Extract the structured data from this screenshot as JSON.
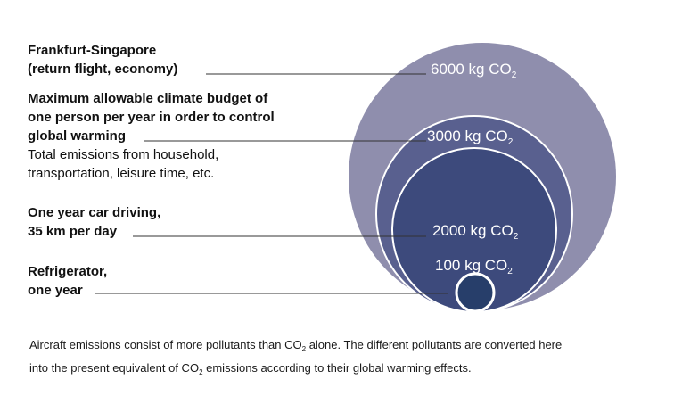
{
  "items": [
    {
      "title_lines": [
        "Frankfurt-Singapore",
        "(return flight, economy)"
      ],
      "desc_lines": [],
      "value": "6000 kg CO",
      "value_sub": "2",
      "color": "#8f8ead"
    },
    {
      "title_lines": [
        "Maximum allowable climate budget of",
        "one person per year in order to control",
        "global warming"
      ],
      "desc_lines": [
        "Total emissions from household,",
        "transportation, leisure time, etc."
      ],
      "value": "3000 kg CO",
      "value_sub": "2",
      "color": "#59608f"
    },
    {
      "title_lines": [
        "One year car driving,",
        "35 km per day"
      ],
      "desc_lines": [],
      "value": "2000 kg CO",
      "value_sub": "2",
      "color": "#3d4a7c"
    },
    {
      "title_lines": [
        "Refrigerator,",
        "one year"
      ],
      "desc_lines": [],
      "value": "100 kg CO",
      "value_sub": "2",
      "color": "#273e6a"
    }
  ],
  "footnote": {
    "line1_a": "Aircraft emissions consist of more pollutants than CO",
    "line1_sub": "2",
    "line1_b": " alone. The different pollutants are converted here",
    "line2_a": "into the present equivalent of CO",
    "line2_sub": "2",
    "line2_b": " emissions according to their global warming effects."
  },
  "colors": {
    "circle_outline": "#ffffff",
    "leader_line": "#333333"
  }
}
